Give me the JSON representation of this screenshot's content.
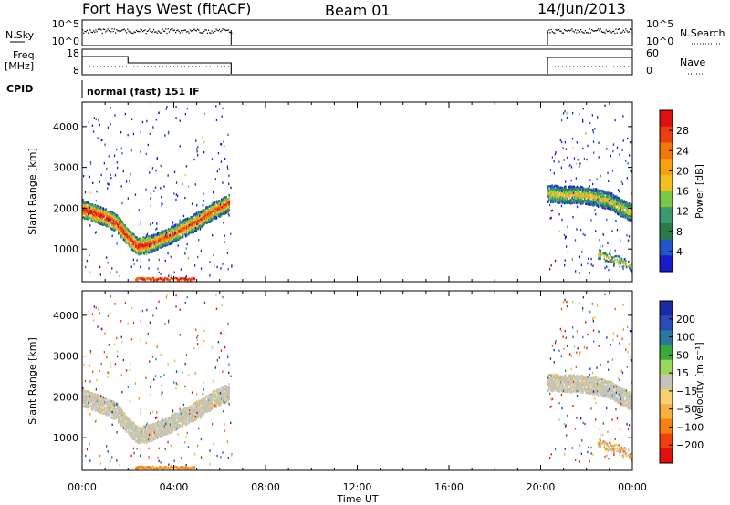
{
  "header": {
    "title": "Fort Hays West (fitACF)",
    "beam": "Beam 01",
    "date": "14/Jun/2013"
  },
  "strips": {
    "nsky": {
      "label": "N.Sky",
      "right_label": "N.Search",
      "left_ticks": [
        "10^5",
        "10^0"
      ],
      "right_ticks": [
        "10^5",
        "10^0"
      ]
    },
    "freq": {
      "label_top": "Freq.",
      "label_unit": "[MHz]",
      "right_label": "Nave",
      "left_ticks": [
        "18",
        "8"
      ],
      "right_ticks": [
        "60",
        "0"
      ]
    },
    "cpid": {
      "label": "CPID",
      "text": "normal (fast) 151 IF"
    }
  },
  "colors": {
    "power": [
      "#1a1acd",
      "#2255cc",
      "#2a7a4a",
      "#3c9a70",
      "#7ac848",
      "#f0c020",
      "#f8a010",
      "#f07808",
      "#e84010",
      "#e01010"
    ],
    "velocity": [
      "#e01010",
      "#f04010",
      "#f88010",
      "#f8b040",
      "#f8d070",
      "#c4c4bc",
      "#9ad858",
      "#3ca83c",
      "#2a78a0",
      "#2a4ab8",
      "#1a2aa8"
    ]
  },
  "chart_data": [
    {
      "type": "heatmap",
      "panel": "power",
      "ylabel": "Slant Range [km]",
      "xlabel": "Time UT",
      "y_ticks": [
        "4000",
        "3000",
        "2000",
        "1000"
      ],
      "x_ticks": [
        "00:00",
        "04:00",
        "08:00",
        "12:00",
        "16:00",
        "20:00",
        "00:00"
      ],
      "x_range_hours": [
        0,
        24
      ],
      "ylim": [
        200,
        4600
      ],
      "colorbar_label": "Power [dB]",
      "colorbar_ticks": [
        "28",
        "24",
        "20",
        "16",
        "12",
        "8",
        "4"
      ],
      "colorbar_range": [
        0,
        32
      ],
      "data_windows_hours": [
        [
          0,
          6.5
        ],
        [
          20.3,
          24
        ]
      ],
      "echo_bands": [
        {
          "t": [
            0,
            0.5,
            1.0,
            1.5,
            2.0,
            2.4,
            3.0,
            4.0,
            5.0,
            5.7,
            6.4
          ],
          "range_km": [
            2000,
            1900,
            1800,
            1650,
            1300,
            1080,
            1150,
            1400,
            1700,
            1950,
            2150
          ]
        },
        {
          "t": [
            20.3,
            21.0,
            21.6,
            22.3,
            23.0,
            23.6,
            24.0
          ],
          "range_km": [
            2380,
            2350,
            2350,
            2300,
            2200,
            2000,
            1900
          ]
        },
        {
          "t": [
            22.5,
            23.0,
            23.5,
            24.0
          ],
          "range_km": [
            900,
            800,
            700,
            600
          ]
        }
      ]
    },
    {
      "type": "heatmap",
      "panel": "velocity",
      "ylabel": "Slant Range [km]",
      "xlabel": "Time UT",
      "y_ticks": [
        "4000",
        "3000",
        "2000",
        "1000"
      ],
      "x_ticks": [
        "00:00",
        "04:00",
        "08:00",
        "12:00",
        "16:00",
        "20:00",
        "00:00"
      ],
      "x_range_hours": [
        0,
        24
      ],
      "ylim": [
        200,
        4600
      ],
      "colorbar_label": "Velocity [m s⁻¹]",
      "colorbar_ticks": [
        "200",
        "100",
        "50",
        "15",
        "−15",
        "−50",
        "−100",
        "−200"
      ],
      "data_windows_hours": [
        [
          0,
          6.5
        ],
        [
          20.3,
          24
        ]
      ]
    }
  ]
}
